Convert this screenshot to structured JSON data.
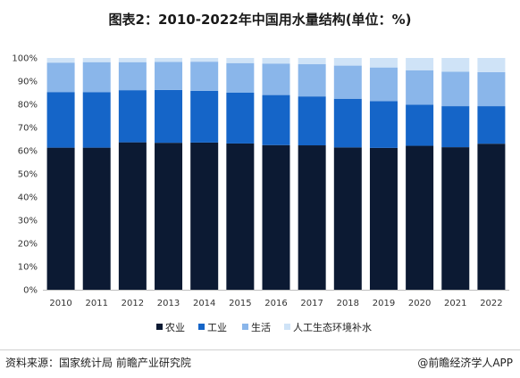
{
  "title": "图表2：2010-2022年中国用水量结构(单位：%)",
  "source": "资料来源：国家统计局 前瞻产业研究院",
  "credit": "@前瞻经济学人APP",
  "colors": {
    "agriculture": "#0c1a33",
    "industry": "#1565c8",
    "domestic": "#8ab6ea",
    "ecology": "#cfe3f7",
    "axis": "#bfbfbf",
    "footer_line": "#d0d0d0"
  },
  "chart_data": {
    "type": "bar",
    "stacked": true,
    "categories": [
      "2010",
      "2011",
      "2012",
      "2013",
      "2014",
      "2015",
      "2016",
      "2017",
      "2018",
      "2019",
      "2020",
      "2021",
      "2022"
    ],
    "series": [
      {
        "name": "农业",
        "values": [
          61.3,
          61.3,
          63.6,
          63.4,
          63.5,
          63.1,
          62.4,
          62.3,
          61.4,
          61.2,
          62.1,
          61.5,
          63.0
        ]
      },
      {
        "name": "工业",
        "values": [
          24.0,
          23.9,
          22.5,
          22.8,
          22.3,
          21.9,
          21.6,
          21.1,
          21.0,
          20.2,
          17.7,
          17.7,
          16.2
        ]
      },
      {
        "name": "生活",
        "values": [
          12.7,
          13.0,
          12.1,
          12.1,
          12.6,
          12.8,
          13.6,
          13.9,
          14.3,
          14.5,
          14.9,
          14.9,
          14.7
        ]
      },
      {
        "name": "人工生态环境补水",
        "values": [
          2.0,
          1.8,
          1.8,
          1.7,
          1.6,
          2.2,
          2.4,
          2.7,
          3.3,
          4.1,
          5.3,
          5.9,
          6.1
        ]
      }
    ],
    "y_ticks": [
      "0%",
      "10%",
      "20%",
      "30%",
      "40%",
      "50%",
      "60%",
      "70%",
      "80%",
      "90%",
      "100%"
    ],
    "ylim": [
      0,
      100
    ],
    "grid": false,
    "legend_position": "bottom"
  }
}
